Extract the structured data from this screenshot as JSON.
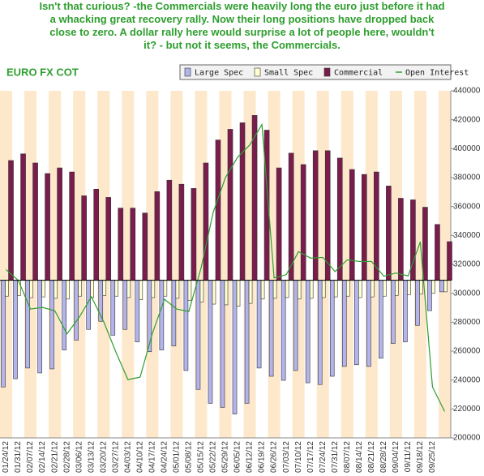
{
  "caption_lines": [
    "Isn't that curious? -the Commercials were heavily long the euro just before it had",
    "a whacking great recovery rally. Now their long positions have dropped back",
    "close to zero. A dollar rally here would surprise a lot of people here, wouldn't",
    "it? -  but not it seems, the Commercials."
  ],
  "chart_data": {
    "type": "bar",
    "title": "EURO FX COT",
    "categories": [
      "01/24/12",
      "01/31/12",
      "02/07/12",
      "02/14/12",
      "02/21/12",
      "02/28/12",
      "03/06/12",
      "03/13/12",
      "03/20/12",
      "03/27/12",
      "04/03/12",
      "04/10/12",
      "04/17/12",
      "04/24/12",
      "05/01/12",
      "05/08/12",
      "05/15/12",
      "05/22/12",
      "05/29/12",
      "06/05/12",
      "06/12/12",
      "06/19/12",
      "06/26/12",
      "07/03/12",
      "07/10/12",
      "07/17/12",
      "07/24/12",
      "07/31/12",
      "08/07/12",
      "08/14/12",
      "08/21/12",
      "08/28/12",
      "09/04/12",
      "09/11/12",
      "09/18/12",
      "09/25/12",
      null
    ],
    "ylim": [
      -109000,
      131000
    ],
    "y2lim": [
      200000,
      440000
    ],
    "y2ticks": [
      200000,
      220000,
      240000,
      260000,
      280000,
      300000,
      320000,
      340000,
      360000,
      380000,
      400000,
      420000,
      440000
    ],
    "series": [
      {
        "name": "Large Spec",
        "color": "#b4b4ec",
        "values": [
          -73800,
          -68100,
          -60700,
          -64100,
          -61300,
          -48200,
          -41400,
          -34000,
          -28400,
          -38000,
          -34000,
          -42600,
          -49400,
          -48200,
          -45400,
          -62400,
          -75500,
          -85100,
          -87900,
          -92500,
          -85100,
          -60700,
          -66400,
          -69200,
          -62400,
          -70900,
          -72100,
          -66400,
          -59600,
          -58400,
          -59600,
          -53900,
          -43700,
          -42600,
          -31200,
          -21000,
          -8000
        ]
      },
      {
        "name": "Small Spec",
        "color": "#ffffd2",
        "values": [
          -11000,
          -10500,
          -12000,
          -11500,
          -12500,
          -13000,
          -11000,
          -12000,
          -10500,
          -11000,
          -12000,
          -13500,
          -12000,
          -11000,
          -12500,
          -14000,
          -15000,
          -16500,
          -17000,
          -18000,
          -16000,
          -13000,
          -12500,
          -12000,
          -13000,
          -12500,
          -12000,
          -11500,
          -11000,
          -12000,
          -11500,
          -11000,
          -10500,
          -10000,
          -9500,
          -9000,
          -8000
        ]
      },
      {
        "name": "Commercial",
        "color": "#7a1c4c",
        "values": [
          82800,
          87400,
          81100,
          73800,
          77700,
          74900,
          58400,
          63000,
          57300,
          49900,
          49900,
          46500,
          61300,
          69200,
          66400,
          63500,
          81100,
          97000,
          104400,
          108900,
          114000,
          103800,
          77700,
          87900,
          80000,
          89600,
          89600,
          84500,
          76600,
          73200,
          74900,
          65200,
          56700,
          55600,
          50500,
          38600,
          26700
        ]
      },
      {
        "name": "Open Interest",
        "color": "#2e9e2e",
        "axis": "y2",
        "values": [
          316300,
          308900,
          289100,
          290200,
          287900,
          272000,
          283400,
          297600,
          280600,
          259600,
          240300,
          242000,
          272000,
          295900,
          289100,
          287400,
          317400,
          356000,
          379900,
          394000,
          402600,
          416700,
          310600,
          312900,
          328800,
          324300,
          324800,
          315000,
          323100,
          322000,
          322000,
          311800,
          314000,
          312000,
          335600,
          235200,
          218200
        ]
      }
    ]
  }
}
